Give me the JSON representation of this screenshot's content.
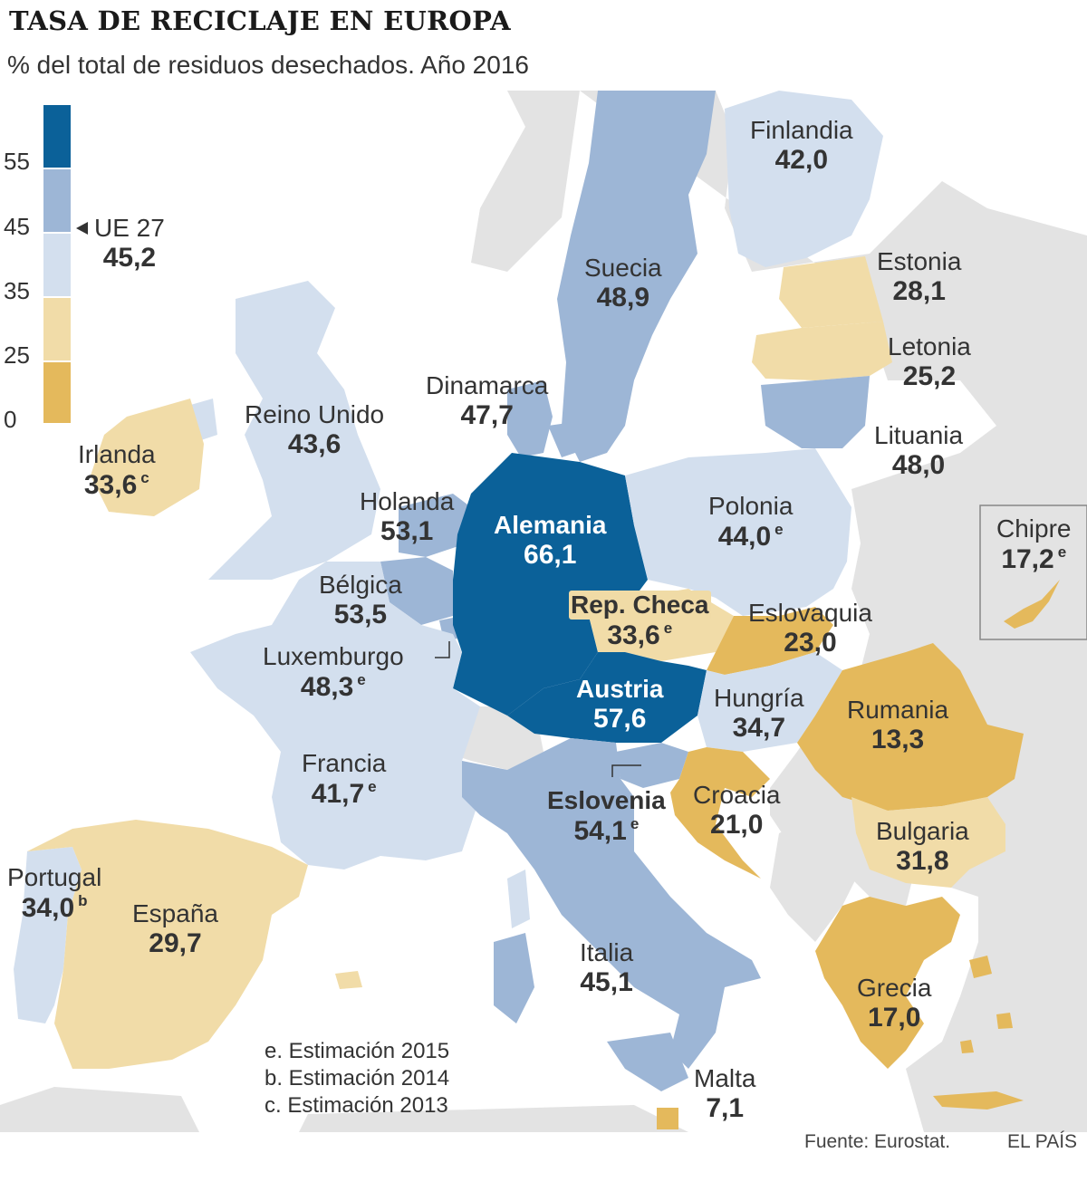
{
  "header": {
    "title": "TASA DE RECICLAJE EN EUROPA",
    "subtitle": "% del total de residuos desechados. Año 2016"
  },
  "legend": {
    "ticks": [
      "55",
      "45",
      "35",
      "25",
      "0"
    ],
    "classes": [
      {
        "min": 55,
        "color": "#0b6199"
      },
      {
        "min": 45,
        "color": "#9db6d6"
      },
      {
        "min": 35,
        "color": "#d3dfee"
      },
      {
        "min": 25,
        "color": "#f1dca8"
      },
      {
        "min": 0,
        "color": "#e4b95c"
      }
    ],
    "eu_label": "UE 27",
    "eu_value": "45,2"
  },
  "colors": {
    "sea": "#ffffff",
    "non_eu_land": "#e3e3e3",
    "text": "#333333"
  },
  "countries": {
    "finlandia": {
      "name": "Finlandia",
      "value": "42,0",
      "note": ""
    },
    "suecia": {
      "name": "Suecia",
      "value": "48,9",
      "note": ""
    },
    "estonia": {
      "name": "Estonia",
      "value": "28,1",
      "note": ""
    },
    "letonia": {
      "name": "Letonia",
      "value": "25,2",
      "note": ""
    },
    "lituania": {
      "name": "Lituania",
      "value": "48,0",
      "note": ""
    },
    "dinamarca": {
      "name": "Dinamarca",
      "value": "47,7",
      "note": ""
    },
    "reino_unido": {
      "name": "Reino Unido",
      "value": "43,6",
      "note": ""
    },
    "irlanda": {
      "name": "Irlanda",
      "value": "33,6",
      "note": "c"
    },
    "holanda": {
      "name": "Holanda",
      "value": "53,1",
      "note": ""
    },
    "alemania": {
      "name": "Alemania",
      "value": "66,1",
      "note": ""
    },
    "polonia": {
      "name": "Polonia",
      "value": "44,0",
      "note": "e"
    },
    "chipre": {
      "name": "Chipre",
      "value": "17,2",
      "note": "e"
    },
    "belgica": {
      "name": "Bélgica",
      "value": "53,5",
      "note": ""
    },
    "rep_checa": {
      "name": "Rep. Checa",
      "value": "33,6",
      "note": "e"
    },
    "eslovaquia": {
      "name": "Eslovaquia",
      "value": "23,0",
      "note": ""
    },
    "luxemburgo": {
      "name": "Luxemburgo",
      "value": "48,3",
      "note": "e"
    },
    "austria": {
      "name": "Austria",
      "value": "57,6",
      "note": ""
    },
    "hungria": {
      "name": "Hungría",
      "value": "34,7",
      "note": ""
    },
    "rumania": {
      "name": "Rumania",
      "value": "13,3",
      "note": ""
    },
    "francia": {
      "name": "Francia",
      "value": "41,7",
      "note": "e"
    },
    "eslovenia": {
      "name": "Eslovenia",
      "value": "54,1",
      "note": "e"
    },
    "croacia": {
      "name": "Croacia",
      "value": "21,0",
      "note": ""
    },
    "bulgaria": {
      "name": "Bulgaria",
      "value": "31,8",
      "note": ""
    },
    "portugal": {
      "name": "Portugal",
      "value": "34,0",
      "note": "b"
    },
    "espana": {
      "name": "España",
      "value": "29,7",
      "note": ""
    },
    "italia": {
      "name": "Italia",
      "value": "45,1",
      "note": ""
    },
    "grecia": {
      "name": "Grecia",
      "value": "17,0",
      "note": ""
    },
    "malta": {
      "name": "Malta",
      "value": "7,1",
      "note": ""
    }
  },
  "notes": {
    "e": "e. Estimación 2015",
    "b": "b. Estimación 2014",
    "c": "c. Estimación 2013"
  },
  "footer": {
    "source": "Fuente: Eurostat.",
    "brand": "EL PAÍS"
  }
}
